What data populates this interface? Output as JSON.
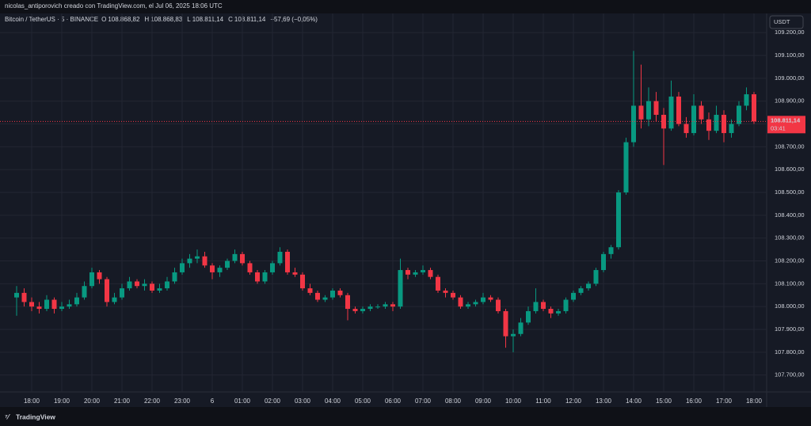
{
  "header": {
    "credit": "nicolas_antiporovich creado con TradingView.com, el Jul 06, 2025 18:06 UTC",
    "logo": "TradingView",
    "currency_button": "USDT"
  },
  "chart_data": {
    "type": "candlestick",
    "legend": {
      "symbol": "Bitcoin / TetherUS · 5 · BINANCE",
      "o_key": "O",
      "o": "108.868,82",
      "h_key": "H",
      "h": "108.868,83",
      "l_key": "L",
      "l": "108.811,14",
      "c_key": "C",
      "c": "108.811,14",
      "change": "−57,69 (−0,05%)"
    },
    "up_color": "#089981",
    "down_color": "#f23645",
    "grid": true,
    "last_price": {
      "value": 108811.14,
      "label": "108.811,14"
    },
    "countdown": "03:41",
    "ylim": [
      107626,
      109284
    ],
    "yticks": [
      {
        "value": 107700,
        "label": "107.700,00"
      },
      {
        "value": 107800,
        "label": "107.800,00"
      },
      {
        "value": 107900,
        "label": "107.900,00"
      },
      {
        "value": 108000,
        "label": "108.000,00"
      },
      {
        "value": 108100,
        "label": "108.100,00"
      },
      {
        "value": 108200,
        "label": "108.200,00"
      },
      {
        "value": 108300,
        "label": "108.300,00"
      },
      {
        "value": 108400,
        "label": "108.400,00"
      },
      {
        "value": 108500,
        "label": "108.500,00"
      },
      {
        "value": 108600,
        "label": "108.600,00"
      },
      {
        "value": 108700,
        "label": "108.700,00"
      },
      {
        "value": 108800,
        "label": "108.800,00"
      },
      {
        "value": 108900,
        "label": "108.900,00"
      },
      {
        "value": 109000,
        "label": "109.000,00"
      },
      {
        "value": 109100,
        "label": "109.100,00"
      },
      {
        "value": 109200,
        "label": "109.200,00"
      }
    ],
    "categories": [
      "17:30",
      "17:45",
      "18:00",
      "18:15",
      "18:30",
      "18:45",
      "19:00",
      "19:15",
      "19:30",
      "19:45",
      "20:00",
      "20:15",
      "20:30",
      "20:45",
      "21:00",
      "21:15",
      "21:30",
      "21:45",
      "22:00",
      "22:15",
      "22:30",
      "22:45",
      "23:00",
      "23:15",
      "23:30",
      "23:45",
      "00:00",
      "00:15",
      "00:30",
      "00:45",
      "01:00",
      "01:15",
      "01:30",
      "01:45",
      "02:00",
      "02:15",
      "02:30",
      "02:45",
      "03:00",
      "03:15",
      "03:30",
      "03:45",
      "04:00",
      "04:15",
      "04:30",
      "04:45",
      "05:00",
      "05:15",
      "05:30",
      "05:45",
      "06:00",
      "06:15",
      "06:30",
      "06:45",
      "07:00",
      "07:15",
      "07:30",
      "07:45",
      "08:00",
      "08:15",
      "08:30",
      "08:45",
      "09:00",
      "09:15",
      "09:30",
      "09:45",
      "10:00",
      "10:15",
      "10:30",
      "10:45",
      "11:00",
      "11:15",
      "11:30",
      "11:45",
      "12:00",
      "12:15",
      "12:30",
      "12:45",
      "13:00",
      "13:15",
      "13:30",
      "13:45",
      "14:00",
      "14:15",
      "14:30",
      "14:45",
      "15:00",
      "15:15",
      "15:30",
      "15:45",
      "16:00",
      "16:15",
      "16:30",
      "16:45",
      "17:00",
      "17:15",
      "17:30",
      "17:45",
      "18:00"
    ],
    "xticks": [
      "18:00",
      "19:00",
      "20:00",
      "21:00",
      "22:00",
      "23:00",
      {
        "value": "00:00",
        "label": "6"
      },
      "01:00",
      "02:00",
      "03:00",
      "04:00",
      "05:00",
      "06:00",
      "07:00",
      "08:00",
      "09:00",
      "10:00",
      "11:00",
      "12:00",
      "13:00",
      "14:00",
      "15:00",
      "16:00",
      "17:00",
      "18:00"
    ],
    "ohlc": [
      [
        108040,
        108090,
        107960,
        108060
      ],
      [
        108060,
        108080,
        108000,
        108020
      ],
      [
        108020,
        108040,
        107980,
        108000
      ],
      [
        108000,
        108020,
        107970,
        107990
      ],
      [
        107990,
        108050,
        107980,
        108030
      ],
      [
        108030,
        108040,
        107970,
        107990
      ],
      [
        107990,
        108020,
        107980,
        108000
      ],
      [
        108000,
        108030,
        107990,
        108010
      ],
      [
        108010,
        108060,
        108000,
        108040
      ],
      [
        108040,
        108110,
        108030,
        108090
      ],
      [
        108090,
        108170,
        108080,
        108150
      ],
      [
        108150,
        108160,
        108100,
        108120
      ],
      [
        108120,
        108130,
        108000,
        108020
      ],
      [
        108020,
        108060,
        108010,
        108040
      ],
      [
        108040,
        108100,
        108030,
        108080
      ],
      [
        108080,
        108130,
        108070,
        108110
      ],
      [
        108110,
        108120,
        108080,
        108090
      ],
      [
        108090,
        108120,
        108070,
        108100
      ],
      [
        108100,
        108110,
        108060,
        108070
      ],
      [
        108070,
        108100,
        108060,
        108080
      ],
      [
        108080,
        108130,
        108070,
        108110
      ],
      [
        108110,
        108170,
        108100,
        108150
      ],
      [
        108150,
        108210,
        108140,
        108190
      ],
      [
        108190,
        108230,
        108170,
        108210
      ],
      [
        108210,
        108250,
        108190,
        108220
      ],
      [
        108220,
        108240,
        108170,
        108180
      ],
      [
        108180,
        108190,
        108120,
        108150
      ],
      [
        108150,
        108180,
        108130,
        108170
      ],
      [
        108170,
        108210,
        108160,
        108200
      ],
      [
        108200,
        108250,
        108190,
        108230
      ],
      [
        108230,
        108240,
        108180,
        108190
      ],
      [
        108190,
        108200,
        108140,
        108150
      ],
      [
        108150,
        108160,
        108100,
        108110
      ],
      [
        108110,
        108160,
        108100,
        108150
      ],
      [
        108150,
        108200,
        108140,
        108190
      ],
      [
        108190,
        108260,
        108180,
        108240
      ],
      [
        108240,
        108250,
        108140,
        108150
      ],
      [
        108150,
        108170,
        108130,
        108140
      ],
      [
        108140,
        108150,
        108070,
        108080
      ],
      [
        108080,
        108100,
        108050,
        108060
      ],
      [
        108060,
        108070,
        108020,
        108030
      ],
      [
        108030,
        108050,
        108020,
        108040
      ],
      [
        108040,
        108080,
        108030,
        108070
      ],
      [
        108070,
        108080,
        108040,
        108050
      ],
      [
        108050,
        108060,
        107940,
        107990
      ],
      [
        107990,
        108000,
        107970,
        107980
      ],
      [
        107980,
        108000,
        107970,
        107990
      ],
      [
        107990,
        108010,
        107980,
        108000
      ],
      [
        108000,
        108010,
        107990,
        108000
      ],
      [
        108000,
        108020,
        107990,
        108010
      ],
      [
        108010,
        108020,
        107980,
        108000
      ],
      [
        108000,
        108210,
        107990,
        108160
      ],
      [
        108160,
        108170,
        108120,
        108140
      ],
      [
        108140,
        108160,
        108130,
        108150
      ],
      [
        108150,
        108180,
        108140,
        108160
      ],
      [
        108160,
        108170,
        108120,
        108130
      ],
      [
        108130,
        108140,
        108060,
        108070
      ],
      [
        108070,
        108080,
        108040,
        108060
      ],
      [
        108060,
        108070,
        108030,
        108040
      ],
      [
        108040,
        108050,
        107990,
        108000
      ],
      [
        108000,
        108020,
        107990,
        108010
      ],
      [
        108010,
        108030,
        108000,
        108020
      ],
      [
        108020,
        108060,
        108010,
        108040
      ],
      [
        108040,
        108050,
        108020,
        108030
      ],
      [
        108030,
        108040,
        107970,
        107980
      ],
      [
        107980,
        107990,
        107820,
        107870
      ],
      [
        107870,
        107900,
        107800,
        107880
      ],
      [
        107880,
        107950,
        107870,
        107930
      ],
      [
        107930,
        108000,
        107920,
        107980
      ],
      [
        107980,
        108080,
        107970,
        108020
      ],
      [
        108020,
        108030,
        107980,
        107990
      ],
      [
        107990,
        108000,
        107950,
        107970
      ],
      [
        107970,
        107990,
        107960,
        107980
      ],
      [
        107980,
        108040,
        107970,
        108030
      ],
      [
        108030,
        108070,
        108020,
        108060
      ],
      [
        108060,
        108090,
        108050,
        108080
      ],
      [
        108080,
        108110,
        108070,
        108100
      ],
      [
        108100,
        108170,
        108090,
        108160
      ],
      [
        108160,
        108240,
        108150,
        108230
      ],
      [
        108230,
        108270,
        108210,
        108260
      ],
      [
        108260,
        108510,
        108250,
        108500
      ],
      [
        108500,
        108740,
        108490,
        108720
      ],
      [
        108720,
        109120,
        108700,
        108880
      ],
      [
        108880,
        109060,
        108780,
        108820
      ],
      [
        108820,
        108960,
        108790,
        108900
      ],
      [
        108900,
        108940,
        108810,
        108840
      ],
      [
        108840,
        108870,
        108620,
        108780
      ],
      [
        108780,
        108990,
        108770,
        108920
      ],
      [
        108920,
        108940,
        108790,
        108800
      ],
      [
        108800,
        108830,
        108740,
        108760
      ],
      [
        108760,
        108930,
        108750,
        108880
      ],
      [
        108880,
        108900,
        108800,
        108820
      ],
      [
        108820,
        108850,
        108730,
        108770
      ],
      [
        108770,
        108880,
        108760,
        108840
      ],
      [
        108840,
        108860,
        108720,
        108760
      ],
      [
        108760,
        108820,
        108740,
        108800
      ],
      [
        108800,
        108900,
        108790,
        108880
      ],
      [
        108880,
        108960,
        108860,
        108930
      ],
      [
        108930,
        108940,
        108800,
        108811.14
      ]
    ]
  }
}
